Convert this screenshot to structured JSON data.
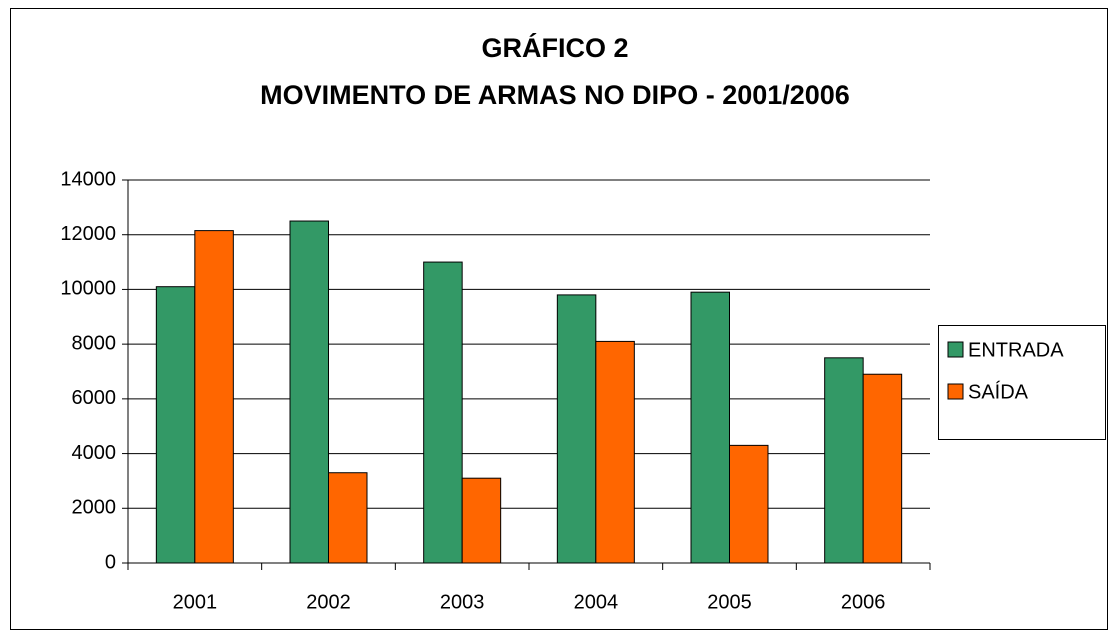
{
  "chart_data": {
    "type": "bar",
    "title": "GRÁFICO 2",
    "subtitle": "MOVIMENTO DE ARMAS NO DIPO - 2001/2006",
    "categories": [
      "2001",
      "2002",
      "2003",
      "2004",
      "2005",
      "2006"
    ],
    "series": [
      {
        "name": "ENTRADA",
        "color": "#339966",
        "values": [
          10100,
          12500,
          11000,
          9800,
          9900,
          7500
        ]
      },
      {
        "name": "SAÍDA",
        "color": "#ff6600",
        "values": [
          12150,
          3300,
          3100,
          8100,
          4300,
          6900
        ]
      }
    ],
    "ylim": [
      0,
      14000
    ],
    "yticks": [
      0,
      2000,
      4000,
      6000,
      8000,
      10000,
      12000,
      14000
    ],
    "grid": true,
    "legend": "right"
  }
}
